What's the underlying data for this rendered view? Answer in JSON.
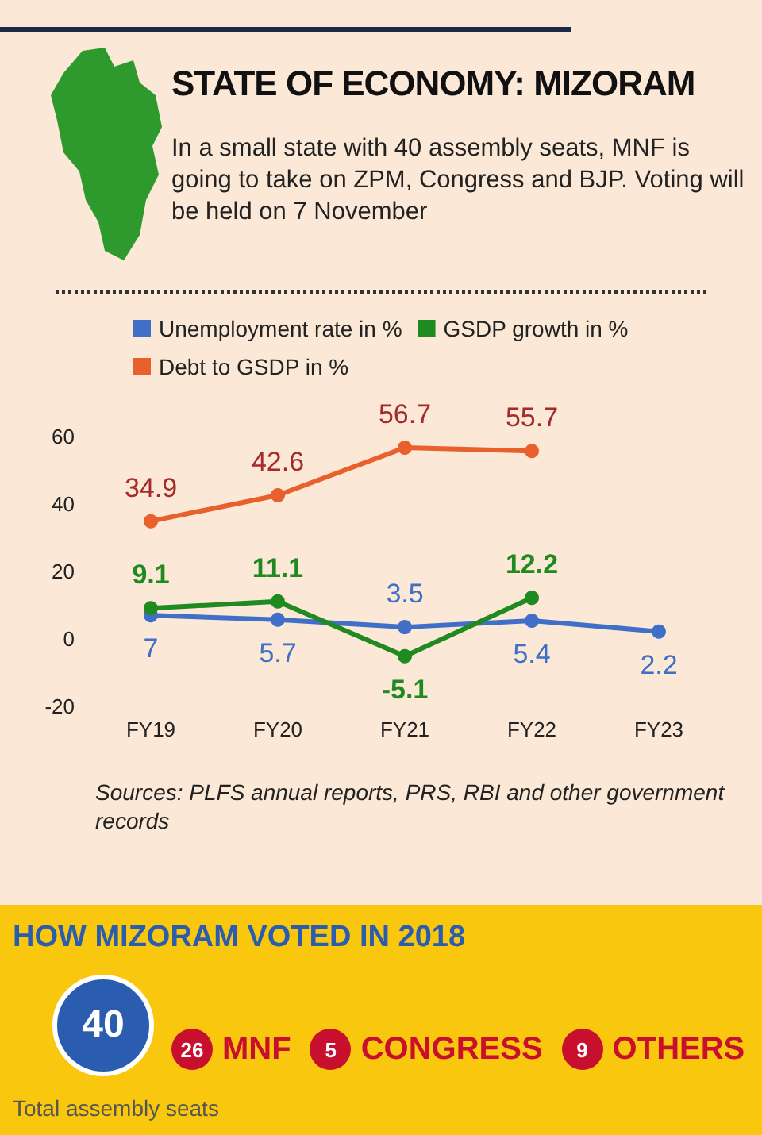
{
  "chart_data": [
    {
      "type": "line",
      "title": "STATE OF ECONOMY: MIZORAM",
      "subtitle": "In a small state with 40 assembly seats, MNF is going to take on ZPM, Congress and BJP. Voting will be held on 7 November",
      "categories": [
        "FY19",
        "FY20",
        "FY21",
        "FY22",
        "FY23"
      ],
      "series": [
        {
          "name": "Unemployment rate in %",
          "color": "#3f6fc6",
          "values": [
            7,
            5.7,
            3.5,
            5.4,
            2.2
          ]
        },
        {
          "name": "GSDP growth in %",
          "color": "#1f8a1f",
          "values": [
            9.1,
            11.1,
            -5.1,
            12.2,
            null
          ]
        },
        {
          "name": "Debt to GSDP in %",
          "color": "#e8602c",
          "values": [
            34.9,
            42.6,
            56.7,
            55.7,
            null
          ]
        }
      ],
      "ylim": [
        -20,
        60
      ],
      "yticks": [
        -20,
        0,
        20,
        40,
        60
      ],
      "grid": false,
      "legend": "top",
      "marker": "circle",
      "data_labels": true,
      "annotations": [
        "Sources: PLFS annual reports, PRS, RBI and other government records"
      ]
    },
    {
      "type": "other",
      "title": "HOW MIZORAM VOTED IN 2018",
      "categories": [
        "MNF",
        "CONGRESS",
        "OTHERS"
      ],
      "values": [
        26,
        5,
        9
      ],
      "data_labels": true,
      "annotations": [
        "40",
        "Total assembly seats"
      ]
    }
  ]
}
